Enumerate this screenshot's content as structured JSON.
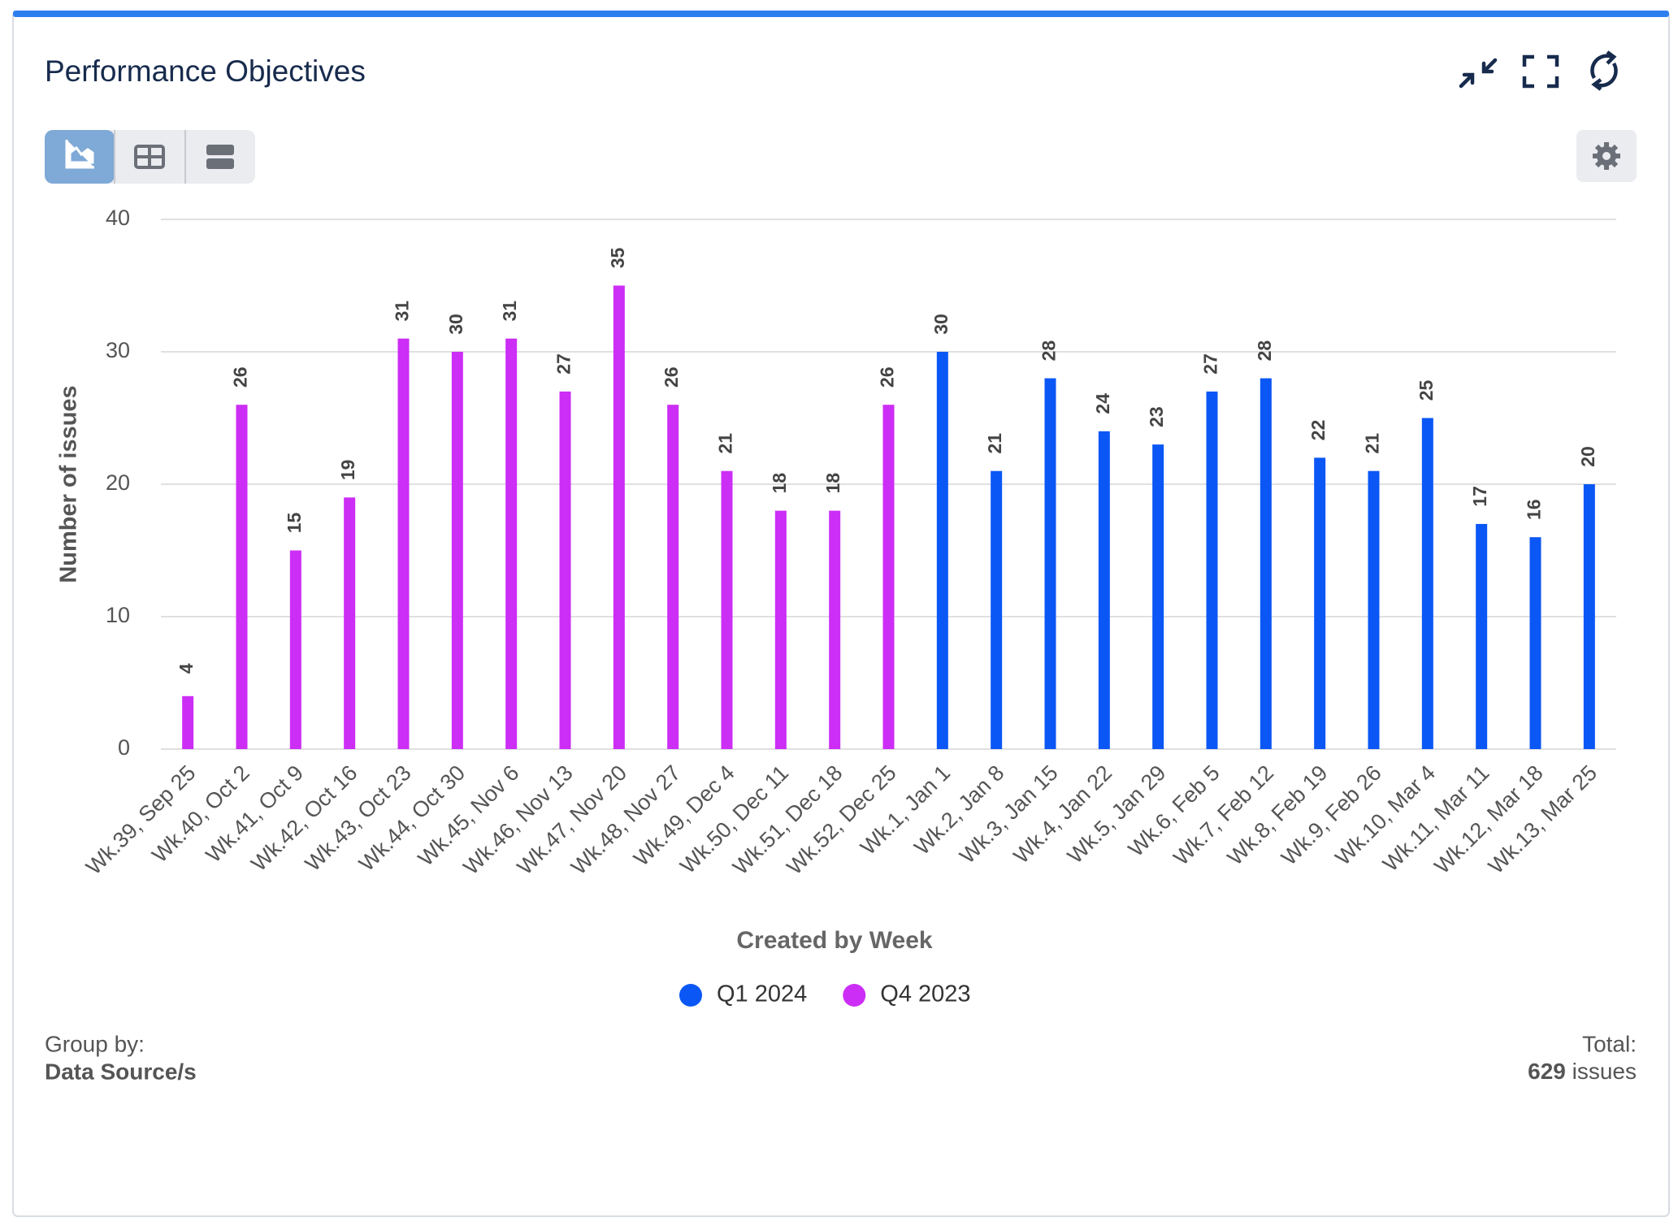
{
  "header": {
    "title": "Performance Objectives"
  },
  "chart_data": {
    "type": "bar",
    "x_label": "Created by Week",
    "y_label": "Number of issues",
    "categories": [
      "Wk.39, Sep 25",
      "Wk.40, Oct 2",
      "Wk.41, Oct 9",
      "Wk.42, Oct 16",
      "Wk.43, Oct 23",
      "Wk.44, Oct 30",
      "Wk.45, Nov 6",
      "Wk.46, Nov 13",
      "Wk.47, Nov 20",
      "Wk.48, Nov 27",
      "Wk.49, Dec 4",
      "Wk.50, Dec 11",
      "Wk.51, Dec 18",
      "Wk.52, Dec 25",
      "Wk.1, Jan 1",
      "Wk.2, Jan 8",
      "Wk.3, Jan 15",
      "Wk.4, Jan 22",
      "Wk.5, Jan 29",
      "Wk.6, Feb 5",
      "Wk.7, Feb 12",
      "Wk.8, Feb 19",
      "Wk.9, Feb 26",
      "Wk.10, Mar 4",
      "Wk.11, Mar 11",
      "Wk.12, Mar 18",
      "Wk.13, Mar 25"
    ],
    "series": [
      {
        "name": "Q1 2024",
        "color": "#0b57f5",
        "values": [
          null,
          null,
          null,
          null,
          null,
          null,
          null,
          null,
          null,
          null,
          null,
          null,
          null,
          null,
          30,
          21,
          28,
          24,
          23,
          27,
          28,
          22,
          21,
          25,
          17,
          16,
          20
        ]
      },
      {
        "name": "Q4 2023",
        "color": "#cc2ef5",
        "values": [
          4,
          26,
          15,
          19,
          31,
          30,
          31,
          27,
          35,
          26,
          21,
          18,
          18,
          26,
          null,
          null,
          null,
          null,
          null,
          null,
          null,
          null,
          null,
          null,
          null,
          null,
          null
        ]
      }
    ],
    "ylim": [
      0,
      40
    ],
    "yticks": [
      0,
      10,
      20,
      30,
      40
    ],
    "grid": true
  },
  "footer": {
    "group_by_label": "Group by:",
    "group_by_value": "Data Source/s",
    "total_label": "Total:",
    "total": 629,
    "total_unit": "issues"
  }
}
